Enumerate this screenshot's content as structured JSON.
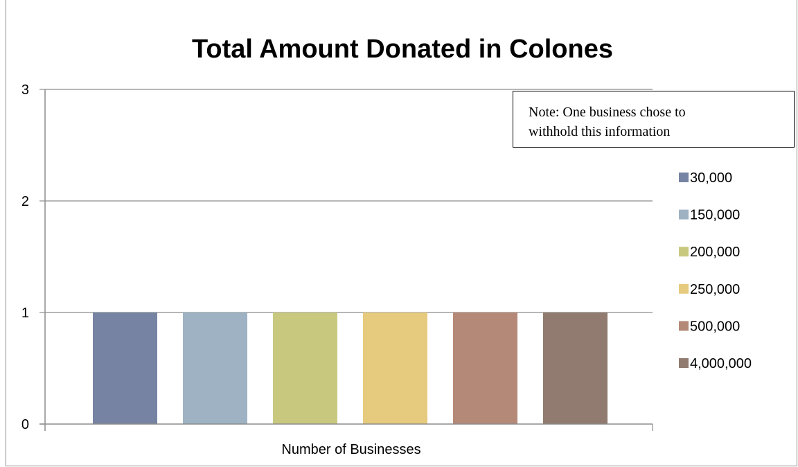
{
  "chart_data": {
    "type": "bar",
    "title": "Total Amount Donated in Colones",
    "xlabel": "Number of Businesses",
    "ylabel": "",
    "categories": [
      "Number of Businesses"
    ],
    "series": [
      {
        "name": "30,000",
        "values": [
          1
        ],
        "color": "#7783a3"
      },
      {
        "name": "150,000",
        "values": [
          1
        ],
        "color": "#9eb2c3"
      },
      {
        "name": "200,000",
        "values": [
          1
        ],
        "color": "#c8c97f"
      },
      {
        "name": "250,000",
        "values": [
          1
        ],
        "color": "#e6ca7e"
      },
      {
        "name": "500,000",
        "values": [
          1
        ],
        "color": "#b48977"
      },
      {
        "name": "4,000,000",
        "values": [
          1
        ],
        "color": "#917a6f"
      }
    ],
    "ylim": [
      0,
      3
    ],
    "yticks": [
      "0",
      "1",
      "2",
      "3"
    ],
    "grid": true,
    "legend_position": "right",
    "annotation": {
      "lines": [
        "Note: One business chose to",
        "withhold this information"
      ]
    }
  }
}
